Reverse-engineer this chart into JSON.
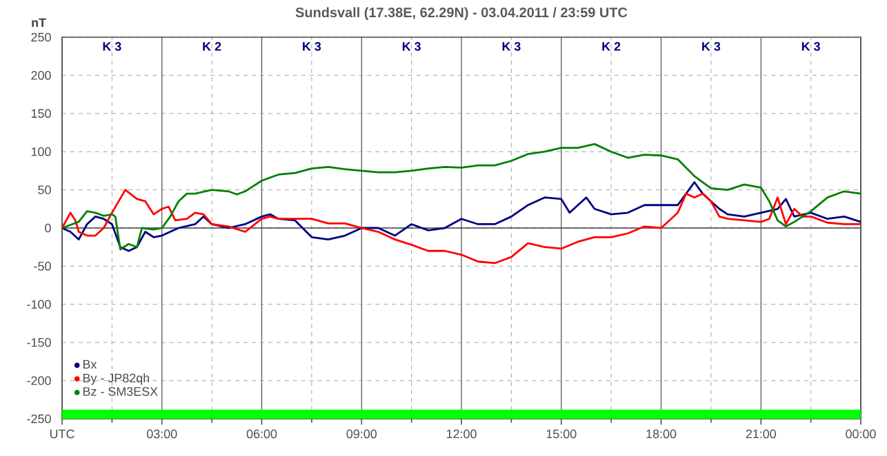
{
  "chart_data": {
    "type": "line",
    "title": "Sundsvall (17.38E, 62.29N) - 03.04.2011 / 23:59 UTC",
    "ylabel": "nT",
    "annotations": [
      "K 3",
      "K 2",
      "K 3",
      "K 3",
      "K 3",
      "K 2",
      "K 3",
      "K 3"
    ],
    "xlim": [
      0,
      24
    ],
    "ylim": [
      -250,
      250
    ],
    "xticks": [
      {
        "value": 0,
        "label": "UTC"
      },
      {
        "value": 1.5,
        "label": null
      },
      {
        "value": 3,
        "label": "03:00"
      },
      {
        "value": 4.5,
        "label": null
      },
      {
        "value": 6,
        "label": "06:00"
      },
      {
        "value": 7.5,
        "label": null
      },
      {
        "value": 9,
        "label": "09:00"
      },
      {
        "value": 10.5,
        "label": null
      },
      {
        "value": 12,
        "label": "12:00"
      },
      {
        "value": 13.5,
        "label": null
      },
      {
        "value": 15,
        "label": "15:00"
      },
      {
        "value": 16.5,
        "label": null
      },
      {
        "value": 18,
        "label": "18:00"
      },
      {
        "value": 19.5,
        "label": null
      },
      {
        "value": 21,
        "label": "21:00"
      },
      {
        "value": 22.5,
        "label": null
      },
      {
        "value": 24,
        "label": "00:00"
      }
    ],
    "yticks": [
      -250,
      -200,
      -150,
      -100,
      -50,
      0,
      50,
      100,
      150,
      200,
      250
    ],
    "grid": true,
    "legend": "bottom left",
    "marker": "none",
    "line_style": "solid",
    "ref_lines": [
      {
        "axis": "y",
        "value": 0,
        "color": "#404040"
      }
    ],
    "bands": [
      {
        "axis": "y",
        "from": -250,
        "to": -238,
        "color": "#00ff00"
      }
    ],
    "series": [
      {
        "name": "Bx",
        "color": "#000080",
        "x": [
          0,
          0.25,
          0.5,
          0.75,
          1,
          1.25,
          1.5,
          1.75,
          2,
          2.25,
          2.5,
          2.75,
          3,
          3.25,
          3.5,
          4,
          4.25,
          4.5,
          5,
          5.5,
          6,
          6.25,
          6.5,
          7,
          7.5,
          8,
          8.5,
          9,
          9.5,
          10,
          10.5,
          11,
          11.5,
          12,
          12.5,
          13,
          13.5,
          14,
          14.5,
          15,
          15.25,
          15.5,
          15.75,
          16,
          16.5,
          17,
          17.5,
          18,
          18.5,
          18.75,
          19,
          19.25,
          19.5,
          19.75,
          20,
          20.5,
          21,
          21.5,
          21.75,
          22,
          22.5,
          23,
          23.5,
          24
        ],
        "values": [
          0,
          -5,
          -15,
          5,
          15,
          12,
          5,
          -25,
          -30,
          -25,
          -5,
          -12,
          -10,
          -5,
          0,
          5,
          15,
          5,
          0,
          5,
          15,
          18,
          12,
          10,
          -12,
          -15,
          -10,
          0,
          0,
          -10,
          5,
          -3,
          0,
          12,
          5,
          5,
          15,
          30,
          40,
          38,
          20,
          30,
          40,
          25,
          18,
          20,
          30,
          30,
          30,
          45,
          60,
          45,
          35,
          25,
          18,
          15,
          20,
          25,
          38,
          15,
          20,
          12,
          15,
          8
        ]
      },
      {
        "name": "By  -  JP82qh",
        "color": "#ff0000",
        "x": [
          0,
          0.25,
          0.4,
          0.5,
          0.75,
          1,
          1.25,
          1.5,
          1.9,
          2.25,
          2.5,
          2.75,
          3,
          3.2,
          3.4,
          3.75,
          4,
          4.25,
          4.5,
          5,
          5.5,
          6,
          6.25,
          6.5,
          7,
          7.5,
          8,
          8.5,
          9,
          9.5,
          10,
          10.5,
          11,
          11.5,
          12,
          12.5,
          13,
          13.5,
          14,
          14.5,
          15,
          15.5,
          16,
          16.5,
          17,
          17.5,
          18,
          18.25,
          18.5,
          18.75,
          19,
          19.25,
          19.5,
          19.75,
          20,
          20.5,
          21,
          21.25,
          21.5,
          21.75,
          22,
          22.25,
          22.5,
          23,
          23.5,
          24
        ],
        "values": [
          0,
          20,
          10,
          -5,
          -10,
          -10,
          0,
          20,
          50,
          38,
          35,
          18,
          25,
          28,
          10,
          12,
          20,
          18,
          5,
          2,
          -5,
          12,
          15,
          12,
          12,
          12,
          6,
          6,
          0,
          -5,
          -15,
          -22,
          -30,
          -30,
          -35,
          -44,
          -46,
          -38,
          -20,
          -25,
          -27,
          -18,
          -12,
          -12,
          -7,
          2,
          0,
          10,
          20,
          45,
          40,
          45,
          35,
          15,
          12,
          10,
          8,
          12,
          40,
          5,
          25,
          15,
          15,
          7,
          5,
          5
        ]
      },
      {
        "name": "Bz  -  SM3ESX",
        "color": "#008000",
        "x": [
          0,
          0.25,
          0.5,
          0.75,
          1,
          1.25,
          1.5,
          1.6,
          1.75,
          2,
          2.25,
          2.4,
          2.75,
          3,
          3.25,
          3.5,
          3.75,
          4,
          4.5,
          5,
          5.25,
          5.5,
          6,
          6.5,
          7,
          7.5,
          8,
          8.5,
          9,
          9.5,
          10,
          10.5,
          11,
          11.5,
          12,
          12.5,
          13,
          13.5,
          14,
          14.5,
          15,
          15.5,
          16,
          16.5,
          17,
          17.5,
          18,
          18.5,
          19,
          19.5,
          20,
          20.5,
          21,
          21.25,
          21.5,
          21.75,
          22,
          22.5,
          23,
          23.5,
          24
        ],
        "values": [
          0,
          4,
          8,
          22,
          20,
          16,
          18,
          15,
          -28,
          -21,
          -25,
          0,
          -2,
          0,
          15,
          35,
          45,
          45,
          50,
          48,
          44,
          48,
          62,
          70,
          72,
          78,
          80,
          77,
          75,
          73,
          73,
          75,
          78,
          80,
          79,
          82,
          82,
          88,
          97,
          100,
          105,
          105,
          110,
          100,
          92,
          96,
          95,
          90,
          68,
          52,
          50,
          57,
          53,
          35,
          10,
          2,
          8,
          22,
          40,
          48,
          45
        ]
      }
    ]
  }
}
